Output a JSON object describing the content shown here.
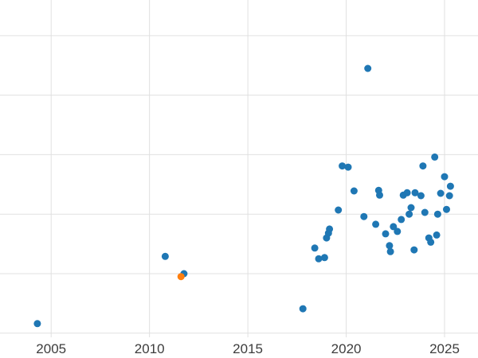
{
  "chart_data": {
    "type": "scatter",
    "title": "",
    "xlabel": "",
    "ylabel": "",
    "xlim": [
      2002.4,
      2026.7
    ],
    "ylim": [
      -0.07,
      5.6
    ],
    "grid": true,
    "legend": "none",
    "x_ticks": [
      {
        "value": 2005,
        "label": "2005"
      },
      {
        "value": 2010,
        "label": "2010"
      },
      {
        "value": 2015,
        "label": "2015"
      },
      {
        "value": 2020,
        "label": "2020"
      },
      {
        "value": 2025,
        "label": "2025"
      }
    ],
    "y_gridlines": [
      0,
      1,
      2,
      3,
      4,
      5
    ],
    "series": [
      {
        "name": "series-blue",
        "color": "#1f77b4",
        "marker_radius": 4.5,
        "points": [
          [
            2004.3,
            0.16
          ],
          [
            2010.8,
            1.29
          ],
          [
            2011.75,
            1.0
          ],
          [
            2017.8,
            0.41
          ],
          [
            2018.4,
            1.43
          ],
          [
            2018.6,
            1.25
          ],
          [
            2018.9,
            1.27
          ],
          [
            2019.0,
            1.6
          ],
          [
            2019.1,
            1.68
          ],
          [
            2019.15,
            1.75
          ],
          [
            2019.6,
            2.07
          ],
          [
            2019.8,
            2.81
          ],
          [
            2020.1,
            2.79
          ],
          [
            2020.4,
            2.39
          ],
          [
            2020.9,
            1.96
          ],
          [
            2021.1,
            4.45
          ],
          [
            2021.5,
            1.83
          ],
          [
            2021.65,
            2.4
          ],
          [
            2021.7,
            2.32
          ],
          [
            2022.0,
            1.67
          ],
          [
            2022.2,
            1.47
          ],
          [
            2022.25,
            1.37
          ],
          [
            2022.4,
            1.79
          ],
          [
            2022.6,
            1.71
          ],
          [
            2022.8,
            1.91
          ],
          [
            2022.9,
            2.32
          ],
          [
            2023.1,
            2.36
          ],
          [
            2023.2,
            2.0
          ],
          [
            2023.3,
            2.11
          ],
          [
            2023.45,
            1.4
          ],
          [
            2023.5,
            2.36
          ],
          [
            2023.8,
            2.31
          ],
          [
            2023.9,
            2.81
          ],
          [
            2024.0,
            2.03
          ],
          [
            2024.2,
            1.6
          ],
          [
            2024.3,
            1.53
          ],
          [
            2024.5,
            2.96
          ],
          [
            2024.6,
            1.65
          ],
          [
            2024.65,
            2.0
          ],
          [
            2024.8,
            2.35
          ],
          [
            2025.0,
            2.63
          ],
          [
            2025.1,
            2.08
          ],
          [
            2025.25,
            2.31
          ],
          [
            2025.3,
            2.47
          ]
        ]
      },
      {
        "name": "series-orange",
        "color": "#ff7f0e",
        "marker_radius": 4.5,
        "points": [
          [
            2011.6,
            0.95
          ]
        ]
      }
    ]
  },
  "colors": {
    "background": "#ffffff",
    "gridline": "#e0e0e0",
    "tick_text": "#3d3d3d"
  }
}
